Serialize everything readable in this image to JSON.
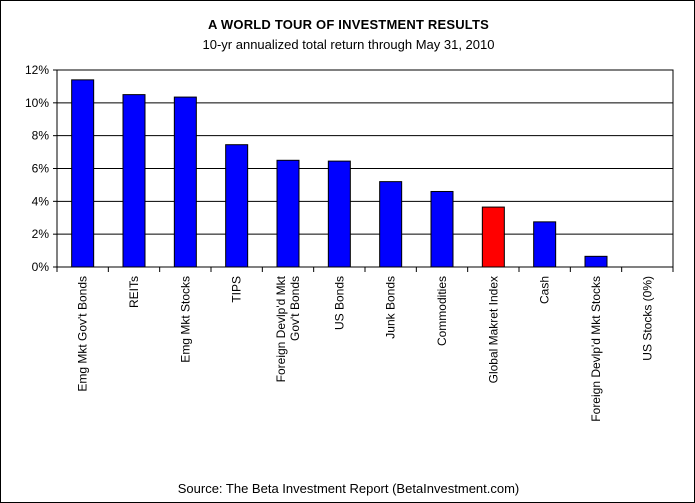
{
  "chart_data": {
    "type": "bar",
    "title": "A WORLD TOUR OF INVESTMENT RESULTS",
    "subtitle": "10-yr annualized total return through May 31, 2010",
    "source": "Source:  The Beta Investment Report (BetaInvestment.com)",
    "ylim": [
      0,
      12
    ],
    "ytick_step": 2,
    "ytick_labels": [
      "0%",
      "2%",
      "4%",
      "6%",
      "8%",
      "10%",
      "12%"
    ],
    "grid": true,
    "legend": "none",
    "categories": [
      [
        "Emg Mkt Gov't Bonds"
      ],
      [
        "REITs"
      ],
      [
        "Emg Mkt Stocks"
      ],
      [
        "TIPS"
      ],
      [
        "Foreign Devlp'd Mkt",
        "Gov't Bonds"
      ],
      [
        "US Bonds"
      ],
      [
        "Junk Bonds"
      ],
      [
        "Commodities"
      ],
      [
        "Global Makret Index"
      ],
      [
        "Cash"
      ],
      [
        "Foreign Devlp'd Mkt Stocks"
      ],
      [
        "US Stocks (0%)"
      ]
    ],
    "values": [
      11.4,
      10.5,
      10.35,
      7.45,
      6.5,
      6.45,
      5.2,
      4.6,
      3.65,
      2.75,
      0.65,
      0
    ],
    "colors": [
      "#0000ff",
      "#0000ff",
      "#0000ff",
      "#0000ff",
      "#0000ff",
      "#0000ff",
      "#0000ff",
      "#0000ff",
      "#ff0000",
      "#0000ff",
      "#0000ff",
      "#0000ff"
    ]
  }
}
